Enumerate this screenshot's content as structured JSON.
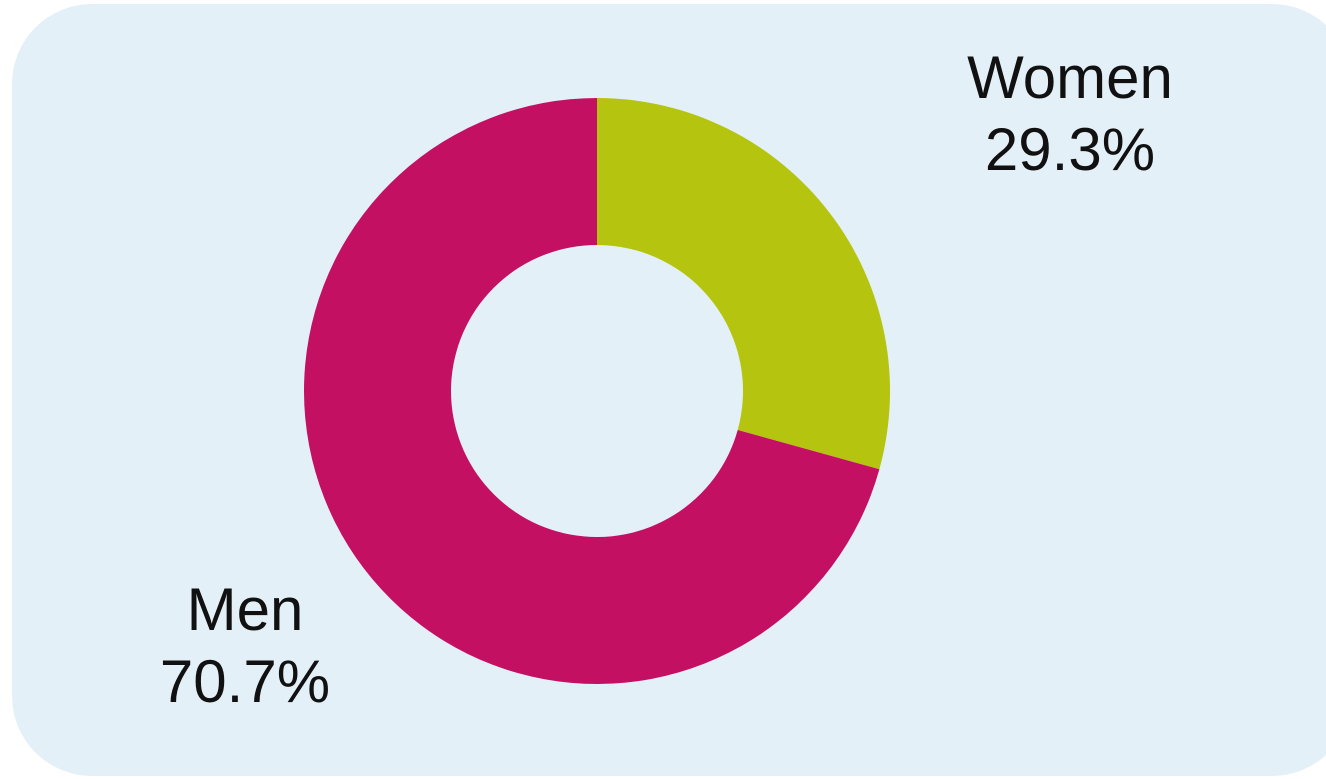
{
  "chart_data": {
    "type": "pie",
    "donut": true,
    "slices": [
      {
        "label": "Women",
        "value": 29.3,
        "display": "29.3%",
        "color": "#b5c40f"
      },
      {
        "label": "Men",
        "value": 70.7,
        "display": "70.7%",
        "color": "#c41063"
      }
    ],
    "start_angle": "12 o'clock",
    "direction": "clockwise",
    "background_color": "#e4f0f7"
  }
}
